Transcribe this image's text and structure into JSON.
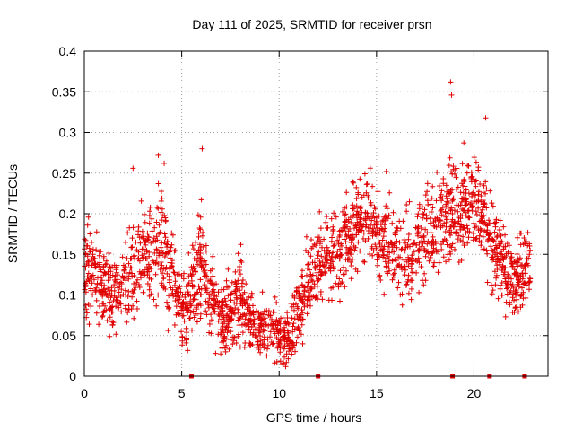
{
  "chart_data": {
    "type": "scatter",
    "title": "Day 111 of 2025, SRMTID for receiver prsn",
    "xlabel": "GPS time / hours",
    "ylabel": "SRMTID / TECUs",
    "xlim": [
      0,
      23.8
    ],
    "ylim": [
      0,
      0.4
    ],
    "x_ticks": [
      0,
      5,
      10,
      15,
      20
    ],
    "x_tick_labels": [
      "0",
      "5",
      "10",
      "15",
      "20"
    ],
    "y_ticks": [
      0,
      0.05,
      0.1,
      0.15,
      0.2,
      0.25,
      0.3,
      0.35,
      0.4
    ],
    "y_tick_labels": [
      "0",
      "0.05",
      "0.1",
      "0.15",
      "0.2",
      "0.25",
      "0.3",
      "0.35",
      "0.4"
    ],
    "grid": true,
    "marker": "plus",
    "color": "#e00000",
    "outlier_x": [
      18.8,
      18.85,
      6.05,
      3.8,
      15.5,
      20.6,
      4.1,
      2.5
    ],
    "outlier_y": [
      0.362,
      0.346,
      0.28,
      0.272,
      0.252,
      0.318,
      0.262,
      0.256
    ],
    "zero_markers_x": [
      5.5,
      12.0,
      18.9,
      20.8,
      22.6
    ],
    "density_profile": {
      "hours": [
        0,
        0.5,
        1,
        1.5,
        2,
        2.5,
        3,
        3.5,
        4,
        4.5,
        5,
        5.5,
        6,
        6.5,
        7,
        7.5,
        8,
        8.5,
        9,
        9.5,
        10,
        10.5,
        11,
        11.5,
        12,
        12.5,
        13,
        13.5,
        14,
        14.5,
        15,
        15.5,
        16,
        16.5,
        17,
        17.5,
        18,
        18.5,
        19,
        19.5,
        20,
        20.5,
        21,
        21.5,
        22,
        22.5,
        23
      ],
      "center": [
        0.14,
        0.12,
        0.11,
        0.1,
        0.11,
        0.13,
        0.15,
        0.14,
        0.16,
        0.12,
        0.08,
        0.1,
        0.15,
        0.09,
        0.07,
        0.08,
        0.1,
        0.07,
        0.06,
        0.06,
        0.05,
        0.04,
        0.08,
        0.11,
        0.14,
        0.15,
        0.15,
        0.17,
        0.19,
        0.2,
        0.17,
        0.16,
        0.15,
        0.14,
        0.16,
        0.18,
        0.18,
        0.2,
        0.21,
        0.21,
        0.22,
        0.2,
        0.16,
        0.14,
        0.12,
        0.12,
        0.15
      ],
      "spread": [
        0.045,
        0.035,
        0.035,
        0.035,
        0.035,
        0.045,
        0.045,
        0.045,
        0.05,
        0.04,
        0.03,
        0.035,
        0.045,
        0.03,
        0.03,
        0.035,
        0.035,
        0.03,
        0.025,
        0.025,
        0.025,
        0.025,
        0.03,
        0.035,
        0.035,
        0.04,
        0.04,
        0.04,
        0.04,
        0.035,
        0.035,
        0.035,
        0.035,
        0.035,
        0.035,
        0.04,
        0.04,
        0.045,
        0.045,
        0.045,
        0.04,
        0.04,
        0.04,
        0.035,
        0.035,
        0.035,
        0.035
      ]
    }
  }
}
